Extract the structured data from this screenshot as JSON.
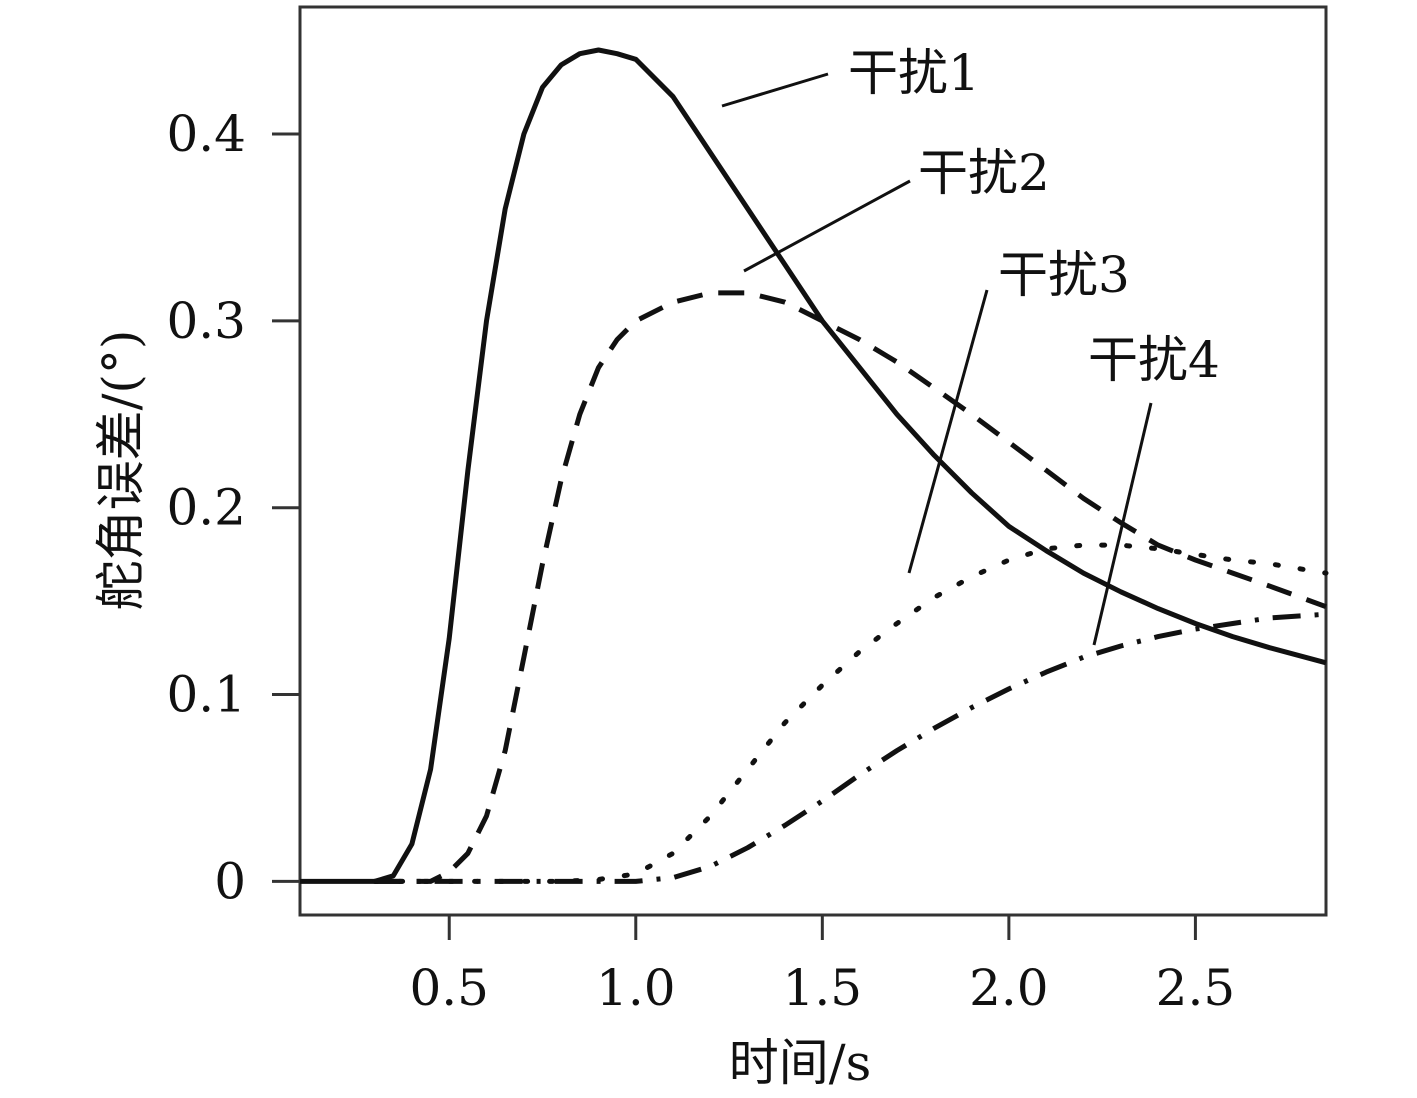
{
  "chart_data": {
    "type": "line",
    "xlabel": "时间/s",
    "ylabel": "舵角误差/(°)",
    "xlim": [
      0.1,
      2.85
    ],
    "ylim": [
      -0.018,
      0.468
    ],
    "xticks": [
      0.5,
      1.0,
      1.5,
      2.0,
      2.5
    ],
    "xtick_labels": [
      "0.5",
      "1.0",
      "1.5",
      "2.0",
      "2.5"
    ],
    "yticks": [
      0,
      0.1,
      0.2,
      0.3,
      0.4
    ],
    "ytick_labels": [
      "0",
      "0.1",
      "0.2",
      "0.3",
      "0.4"
    ],
    "grid": false,
    "series": [
      {
        "name": "干扰1",
        "style": "solid",
        "x": [
          0.1,
          0.3,
          0.35,
          0.4,
          0.45,
          0.5,
          0.55,
          0.6,
          0.65,
          0.7,
          0.75,
          0.8,
          0.85,
          0.9,
          0.95,
          1.0,
          1.1,
          1.2,
          1.3,
          1.4,
          1.5,
          1.6,
          1.7,
          1.8,
          1.9,
          2.0,
          2.1,
          2.2,
          2.3,
          2.4,
          2.5,
          2.6,
          2.7,
          2.85
        ],
        "y": [
          0,
          0,
          0.003,
          0.02,
          0.06,
          0.13,
          0.22,
          0.3,
          0.36,
          0.4,
          0.425,
          0.437,
          0.443,
          0.445,
          0.443,
          0.44,
          0.42,
          0.39,
          0.36,
          0.33,
          0.3,
          0.275,
          0.25,
          0.228,
          0.208,
          0.19,
          0.177,
          0.165,
          0.155,
          0.146,
          0.138,
          0.131,
          0.125,
          0.117
        ]
      },
      {
        "name": "干扰2",
        "style": "dashed",
        "x": [
          0.3,
          0.45,
          0.5,
          0.55,
          0.6,
          0.65,
          0.7,
          0.75,
          0.8,
          0.85,
          0.9,
          0.95,
          1.0,
          1.1,
          1.2,
          1.3,
          1.4,
          1.5,
          1.6,
          1.7,
          1.8,
          1.9,
          2.0,
          2.1,
          2.2,
          2.3,
          2.4,
          2.5,
          2.6,
          2.7,
          2.85
        ],
        "y": [
          0,
          0,
          0.005,
          0.015,
          0.035,
          0.07,
          0.12,
          0.17,
          0.215,
          0.25,
          0.275,
          0.29,
          0.3,
          0.31,
          0.315,
          0.315,
          0.31,
          0.3,
          0.29,
          0.278,
          0.264,
          0.25,
          0.235,
          0.22,
          0.205,
          0.192,
          0.18,
          0.172,
          0.165,
          0.158,
          0.147
        ]
      },
      {
        "name": "干扰3",
        "style": "dotted",
        "x": [
          0.3,
          0.8,
          0.9,
          1.0,
          1.1,
          1.2,
          1.3,
          1.4,
          1.5,
          1.6,
          1.7,
          1.8,
          1.9,
          2.0,
          2.1,
          2.2,
          2.3,
          2.4,
          2.5,
          2.6,
          2.7,
          2.85
        ],
        "y": [
          0,
          0,
          0.001,
          0.004,
          0.015,
          0.035,
          0.06,
          0.085,
          0.105,
          0.123,
          0.138,
          0.152,
          0.163,
          0.172,
          0.178,
          0.18,
          0.18,
          0.178,
          0.175,
          0.172,
          0.17,
          0.165
        ]
      },
      {
        "name": "干扰4",
        "style": "dashdot",
        "x": [
          0.3,
          1.0,
          1.1,
          1.2,
          1.3,
          1.4,
          1.5,
          1.6,
          1.7,
          1.8,
          1.9,
          2.0,
          2.1,
          2.2,
          2.3,
          2.4,
          2.5,
          2.6,
          2.7,
          2.85
        ],
        "y": [
          0,
          0,
          0.002,
          0.008,
          0.018,
          0.03,
          0.043,
          0.057,
          0.07,
          0.082,
          0.093,
          0.103,
          0.112,
          0.12,
          0.126,
          0.131,
          0.135,
          0.138,
          0.141,
          0.143
        ]
      }
    ],
    "annotations": [
      {
        "text": "干扰1",
        "series": 0
      },
      {
        "text": "干扰2",
        "series": 1
      },
      {
        "text": "干扰3",
        "series": 2
      },
      {
        "text": "干扰4",
        "series": 3
      }
    ]
  }
}
